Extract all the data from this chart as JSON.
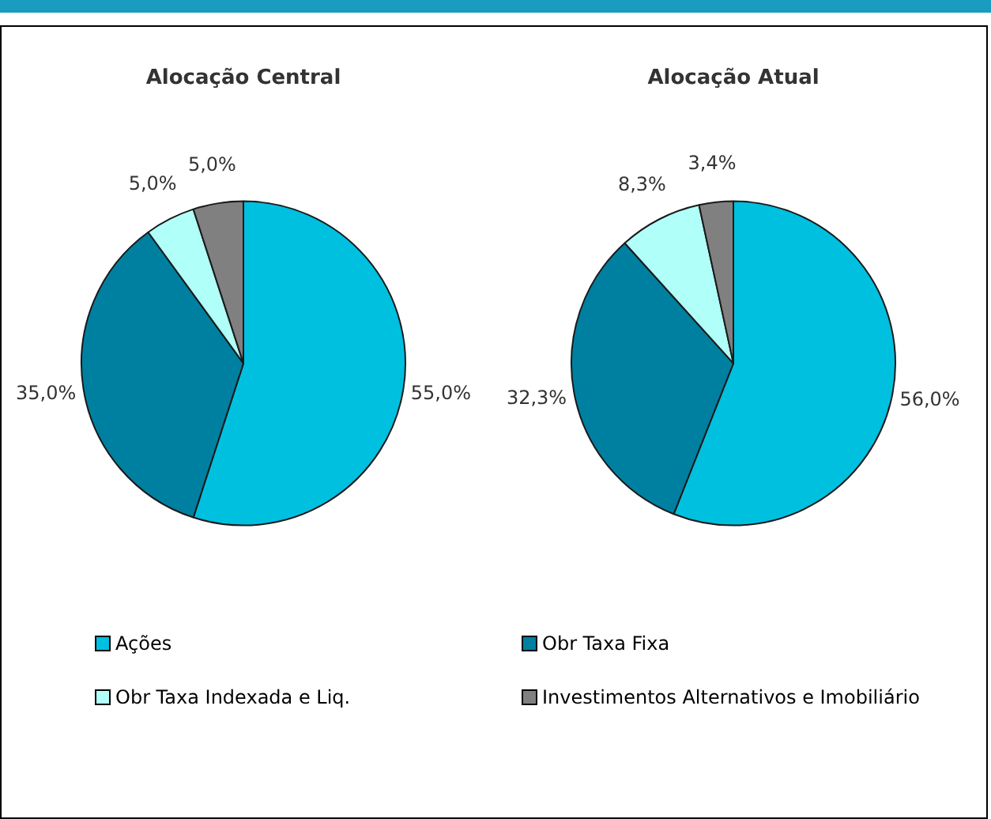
{
  "chart_data": [
    {
      "type": "pie",
      "title": "Alocação Central",
      "categories": [
        "Ações",
        "Obr Taxa Fixa",
        "Obr Taxa Indexada e Liq.",
        "Investimentos Alternativos e Imobiliário"
      ],
      "values": [
        55.0,
        35.0,
        5.0,
        5.0
      ],
      "value_labels": [
        "55,0%",
        "35,0%",
        "5,0%",
        "5,0%"
      ],
      "colors": [
        "#00c0e0",
        "#0080a0",
        "#b0fff8",
        "#808080"
      ],
      "legend": "bottom"
    },
    {
      "type": "pie",
      "title": "Alocação Atual",
      "categories": [
        null,
        null,
        null,
        null
      ],
      "values": [
        56.0,
        32.3,
        8.3,
        3.4
      ],
      "value_labels": [
        "56,0%",
        "32,3%",
        "8,3%",
        "3,4%"
      ],
      "colors": [
        "#00c0e0",
        "#0080a0",
        "#b0fff8",
        "#808080"
      ]
    }
  ]
}
